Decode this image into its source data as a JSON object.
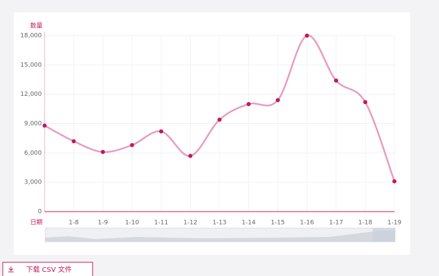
{
  "chart_data": {
    "type": "line",
    "y_label": "数量",
    "x_label": "日期",
    "categories": [
      null,
      "1-8",
      "1-9",
      "1-10",
      "1-11",
      "1-12",
      "1-13",
      "1-14",
      "1-15",
      "1-16",
      "1-17",
      "1-18",
      "1-19"
    ],
    "values": [
      8800,
      7200,
      6100,
      6800,
      8200,
      5700,
      9400,
      11000,
      11400,
      18000,
      13400,
      11200,
      3100
    ],
    "color": "#e79cc0",
    "point_color": "#c2185b",
    "smooth": true,
    "grid": true,
    "ylim": [
      0,
      18000
    ],
    "yticks": [
      0,
      {
        "value": 3000,
        "label": "3,000"
      },
      {
        "value": 6000,
        "label": "6,000"
      },
      {
        "value": 9000,
        "label": "9,000"
      },
      {
        "value": 12000,
        "label": "12,000"
      },
      {
        "value": 15000,
        "label": "15,000"
      },
      {
        "value": 18000,
        "label": "18,000"
      }
    ]
  },
  "button": {
    "label": "下载 CSV 文件"
  }
}
